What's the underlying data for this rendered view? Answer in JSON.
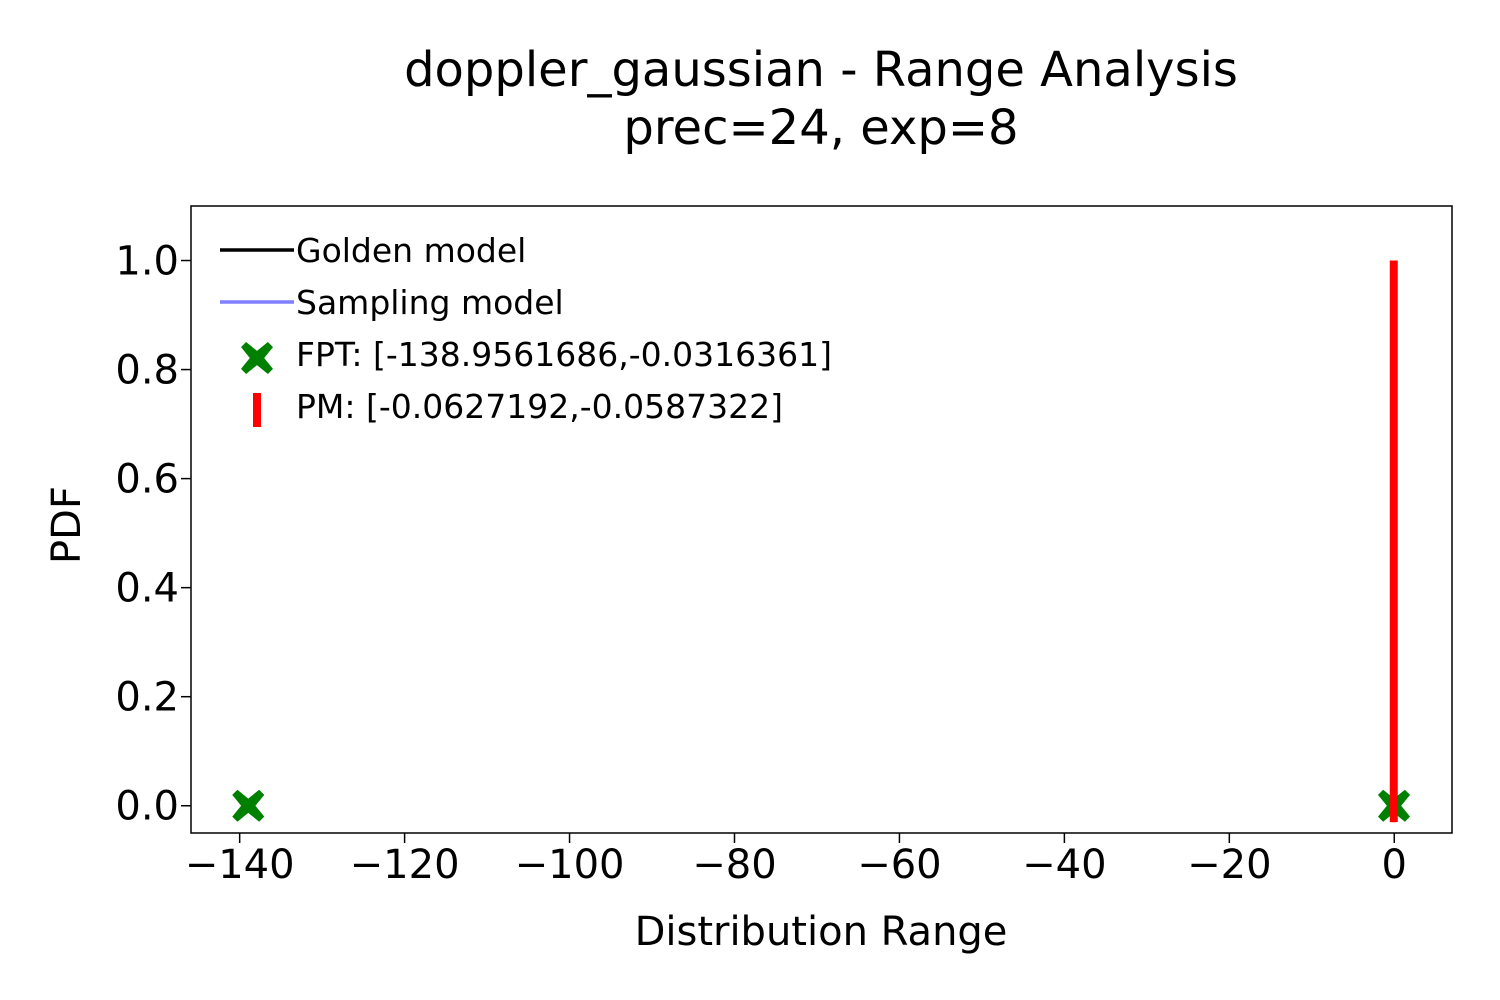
{
  "chart_data": {
    "type": "line",
    "title": "doppler_gaussian - Range Analysis",
    "subtitle": "prec=24, exp=8",
    "xlabel": "Distribution Range",
    "ylabel": "PDF",
    "xlim": [
      -145.9,
      7.0
    ],
    "ylim": [
      -0.05,
      1.1
    ],
    "xticks": [
      -140,
      -120,
      -100,
      -80,
      -60,
      -40,
      -20,
      0
    ],
    "xtick_labels": [
      "−140",
      "−120",
      "−100",
      "−80",
      "−60",
      "−40",
      "−20",
      "0"
    ],
    "yticks": [
      0.0,
      0.2,
      0.4,
      0.6,
      0.8,
      1.0
    ],
    "ytick_labels": [
      "0.0",
      "0.2",
      "0.4",
      "0.6",
      "0.8",
      "1.0"
    ],
    "grid": false,
    "legend_position": "top-left",
    "series": [
      {
        "name": "Golden model",
        "kind": "line",
        "color": "#000000",
        "x": [],
        "y": []
      },
      {
        "name": "Sampling model",
        "kind": "line",
        "color": "#7f7fff",
        "x": [],
        "y": []
      },
      {
        "name": "FPT",
        "kind": "marker-x",
        "color": "#008000",
        "x": [
          -138.9561686,
          -0.0316361
        ],
        "y": [
          0.0,
          0.0
        ]
      },
      {
        "name": "PM",
        "kind": "vline",
        "color": "#ff0000",
        "x": [
          -0.0627192,
          -0.0587322
        ],
        "y_range": [
          -0.03,
          1.0
        ]
      }
    ],
    "legend": [
      {
        "label": "Golden model",
        "symbol": "line",
        "color": "#000000"
      },
      {
        "label": "Sampling model",
        "symbol": "line",
        "color": "#7f7fff"
      },
      {
        "label": "FPT: [-138.9561686,-0.0316361]",
        "symbol": "x-marker",
        "color": "#008000"
      },
      {
        "label": "PM: [-0.0627192,-0.0587322]",
        "symbol": "vbar",
        "color": "#ff0000"
      }
    ]
  }
}
